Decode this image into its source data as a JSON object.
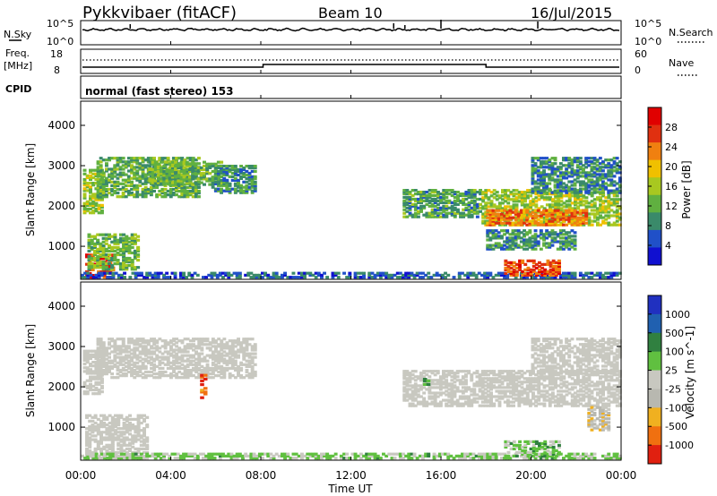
{
  "header": {
    "station": "Pykkvibaer (fitACF)",
    "beam": "Beam 10",
    "date": "16/Jul/2015"
  },
  "colors": {
    "power_scale": [
      "#1010d0",
      "#2050c8",
      "#3a8a6a",
      "#60b040",
      "#a8c820",
      "#f0c000",
      "#f08010",
      "#e03010",
      "#e00000"
    ],
    "velocity_scale": [
      "#2030c0",
      "#2060b0",
      "#308040",
      "#60c040",
      "#c8c8c0",
      "#b8b8b0",
      "#f0b020",
      "#f07010",
      "#e02010"
    ],
    "noise_line": "#000000"
  },
  "noise_panel": {
    "left_label": "N.Sky",
    "left_ticks": [
      "10^5",
      "10^0"
    ],
    "right_ticks": [
      "10^5",
      "10^0"
    ],
    "right_label": "N.Search"
  },
  "freq_panel": {
    "left_label_line1": "Freq.",
    "left_label_line2": "[MHz]",
    "left_ticks": [
      "18",
      "8"
    ],
    "right_ticks": [
      "60",
      "0"
    ],
    "right_label": "Nave"
  },
  "cpid_panel": {
    "label": "CPID",
    "text": "normal (fast stereo) 153"
  },
  "chart_data": [
    {
      "type": "heatmap",
      "title": "",
      "xlabel": "",
      "ylabel": "Slant Range [km]",
      "x_ticks": [
        "00:00",
        "04:00",
        "08:00",
        "12:00",
        "16:00",
        "20:00",
        "00:00"
      ],
      "y_ticks": [
        1000,
        2000,
        3000,
        4000
      ],
      "xlim_hours": [
        0,
        24
      ],
      "ylim": [
        180,
        4600
      ],
      "colorbar_label": "Power [dB]",
      "colorbar_ticks": [
        "4",
        "8",
        "12",
        "16",
        "20",
        "24",
        "28"
      ],
      "colorbar_range": [
        0,
        30
      ],
      "regions": [
        {
          "t0": 0.2,
          "t1": 1.5,
          "r0": 200,
          "r1": 800,
          "value": 26
        },
        {
          "t0": 0.3,
          "t1": 2.6,
          "r0": 400,
          "r1": 1300,
          "value": 12
        },
        {
          "t0": 0.1,
          "t1": 1.0,
          "r0": 1800,
          "r1": 2900,
          "value": 14
        },
        {
          "t0": 0.7,
          "t1": 5.3,
          "r0": 2200,
          "r1": 3200,
          "value": 11
        },
        {
          "t0": 3.0,
          "t1": 6.3,
          "r0": 2500,
          "r1": 3100,
          "value": 12
        },
        {
          "t0": 5.8,
          "t1": 7.8,
          "r0": 2300,
          "r1": 3000,
          "value": 9
        },
        {
          "t0": 0.0,
          "t1": 24.0,
          "r0": 200,
          "r1": 350,
          "value": 6
        },
        {
          "t0": 14.3,
          "t1": 17.8,
          "r0": 1700,
          "r1": 2400,
          "value": 10
        },
        {
          "t0": 17.8,
          "t1": 24.0,
          "r0": 1500,
          "r1": 2400,
          "value": 14
        },
        {
          "t0": 18.0,
          "t1": 22.5,
          "r0": 1500,
          "r1": 1900,
          "value": 22
        },
        {
          "t0": 20.0,
          "t1": 24.0,
          "r0": 2300,
          "r1": 3200,
          "value": 8
        },
        {
          "t0": 18.8,
          "t1": 21.3,
          "r0": 250,
          "r1": 650,
          "value": 24
        },
        {
          "t0": 18.0,
          "t1": 22.0,
          "r0": 900,
          "r1": 1400,
          "value": 9
        }
      ]
    },
    {
      "type": "heatmap",
      "title": "",
      "xlabel": "Time UT",
      "ylabel": "Slant Range [km]",
      "x_ticks": [
        "00:00",
        "04:00",
        "08:00",
        "12:00",
        "16:00",
        "20:00",
        "00:00"
      ],
      "y_ticks": [
        1000,
        2000,
        3000,
        4000
      ],
      "xlim_hours": [
        0,
        24
      ],
      "ylim": [
        180,
        4600
      ],
      "colorbar_label": "Velocity [m s^-1]",
      "colorbar_ticks": [
        "1000",
        "500",
        "100",
        "25",
        "-25",
        "-100",
        "-500",
        "-1000"
      ],
      "colorbar_range": [
        -1000,
        1000
      ],
      "regions": [
        {
          "t0": 0.2,
          "t1": 3.0,
          "r0": 200,
          "r1": 1300,
          "value": 0
        },
        {
          "t0": 0.1,
          "t1": 1.0,
          "r0": 1800,
          "r1": 2900,
          "value": 0
        },
        {
          "t0": 0.7,
          "t1": 7.8,
          "r0": 2200,
          "r1": 3200,
          "value": 0
        },
        {
          "t0": 0.0,
          "t1": 24.0,
          "r0": 200,
          "r1": 350,
          "value": 150
        },
        {
          "t0": 5.3,
          "t1": 5.6,
          "r0": 1700,
          "r1": 2300,
          "value": -700
        },
        {
          "t0": 14.3,
          "t1": 24.0,
          "r0": 1500,
          "r1": 2400,
          "value": 0
        },
        {
          "t0": 20.0,
          "t1": 24.0,
          "r0": 2300,
          "r1": 3200,
          "value": 0
        },
        {
          "t0": 18.8,
          "t1": 21.3,
          "r0": 250,
          "r1": 650,
          "value": 200
        },
        {
          "t0": 15.2,
          "t1": 15.5,
          "r0": 1900,
          "r1": 2200,
          "value": 300
        },
        {
          "t0": 22.5,
          "t1": 23.5,
          "r0": 900,
          "r1": 1500,
          "value": -200
        }
      ]
    }
  ]
}
